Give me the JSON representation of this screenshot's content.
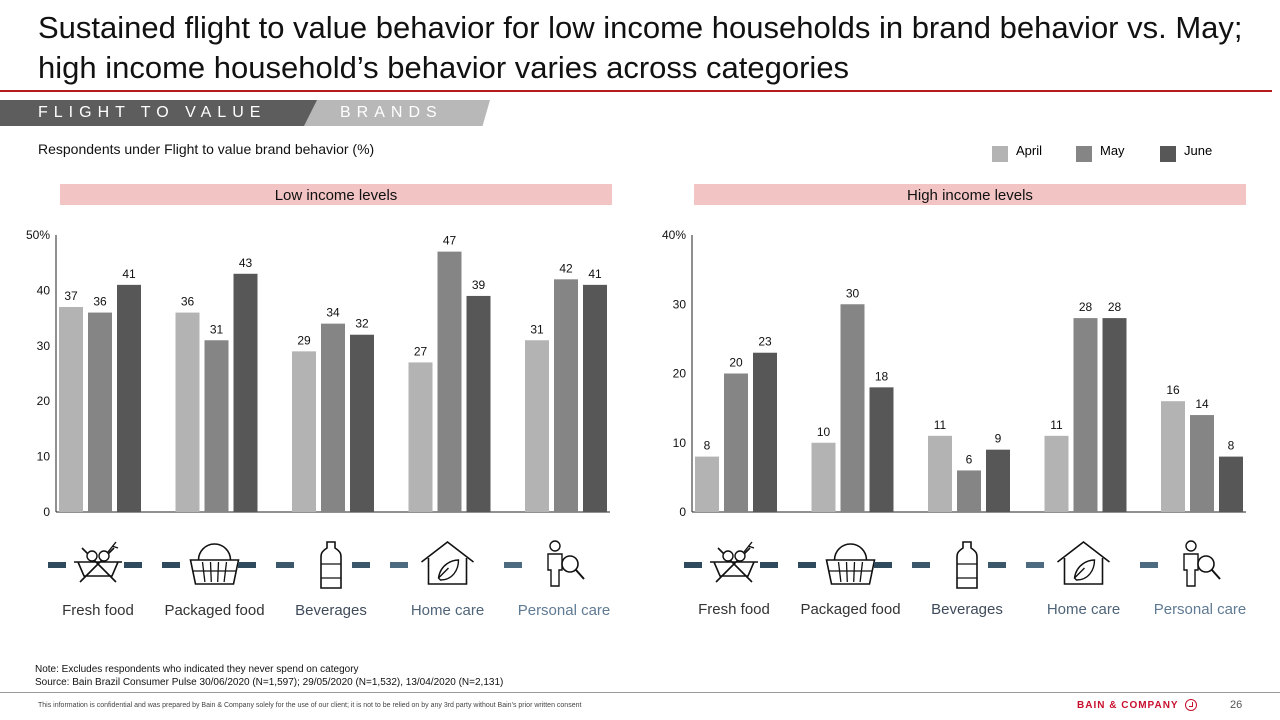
{
  "header": {
    "title": "Sustained flight to value behavior for low income households in brand behavior vs. May; high income household’s behavior varies across categories"
  },
  "tabs": [
    {
      "label": "FLIGHT TO VALUE",
      "active": true
    },
    {
      "label": "BRANDS",
      "active": false
    }
  ],
  "subtitle": "Respondents under Flight to value brand behavior (%)",
  "legend": [
    {
      "name": "April",
      "color": "#b3b3b3"
    },
    {
      "name": "May",
      "color": "#858585"
    },
    {
      "name": "June",
      "color": "#575757"
    }
  ],
  "chart_data": [
    {
      "type": "bar",
      "title": "Low income levels",
      "categories": [
        "Fresh food",
        "Packaged food",
        "Beverages",
        "Home care",
        "Personal care"
      ],
      "category_icons": [
        "basket-of-produce-icon",
        "shopping-basket-icon",
        "bottle-icon",
        "house-with-leaf-icon",
        "person-with-magnifier-icon"
      ],
      "series": [
        {
          "name": "April",
          "values": [
            37,
            36,
            29,
            27,
            31
          ]
        },
        {
          "name": "May",
          "values": [
            36,
            31,
            34,
            47,
            42
          ]
        },
        {
          "name": "June",
          "values": [
            41,
            43,
            32,
            39,
            41
          ]
        }
      ],
      "ylim": [
        0,
        50
      ],
      "yticks": [
        "0",
        "10",
        "20",
        "30",
        "40",
        "50%"
      ],
      "grid": false,
      "legend": "top-right"
    },
    {
      "type": "bar",
      "title": "High income levels",
      "categories": [
        "Fresh food",
        "Packaged food",
        "Beverages",
        "Home care",
        "Personal care"
      ],
      "category_icons": [
        "basket-of-produce-icon",
        "shopping-basket-icon",
        "bottle-icon",
        "house-with-leaf-icon",
        "person-with-magnifier-icon"
      ],
      "series": [
        {
          "name": "April",
          "values": [
            8,
            10,
            11,
            11,
            16
          ]
        },
        {
          "name": "May",
          "values": [
            20,
            30,
            6,
            28,
            14
          ]
        },
        {
          "name": "June",
          "values": [
            23,
            18,
            9,
            28,
            8
          ]
        }
      ],
      "ylim": [
        0,
        40
      ],
      "yticks": [
        "0",
        "10",
        "20",
        "30",
        "40%"
      ],
      "grid": false,
      "legend": "top-right"
    }
  ],
  "colors": {
    "category_label": [
      "#333333",
      "#333333",
      "#3f4a5a",
      "#4f6478",
      "#5f7a93"
    ],
    "dash": [
      "#2f4a5c",
      "#2f4a5c",
      "#3b586b",
      "#4d6b80",
      "#5a7a8f"
    ],
    "panel_header_bg": "#f2c4c4"
  },
  "footer": {
    "note": "Note: Excludes respondents who indicated they never spend on category",
    "source": "Source: Bain Brazil Consumer Pulse 30/06/2020 (N=1,597); 29/05/2020 (N=1,532), 13/04/2020 (N=2,131)",
    "confidential": "This information is confidential and was prepared by Bain & Company solely for the use of our client; it is not to be relied on by any 3rd party without Bain’s prior written consent",
    "logo": "BAIN & COMPANY",
    "page_number": "26"
  }
}
